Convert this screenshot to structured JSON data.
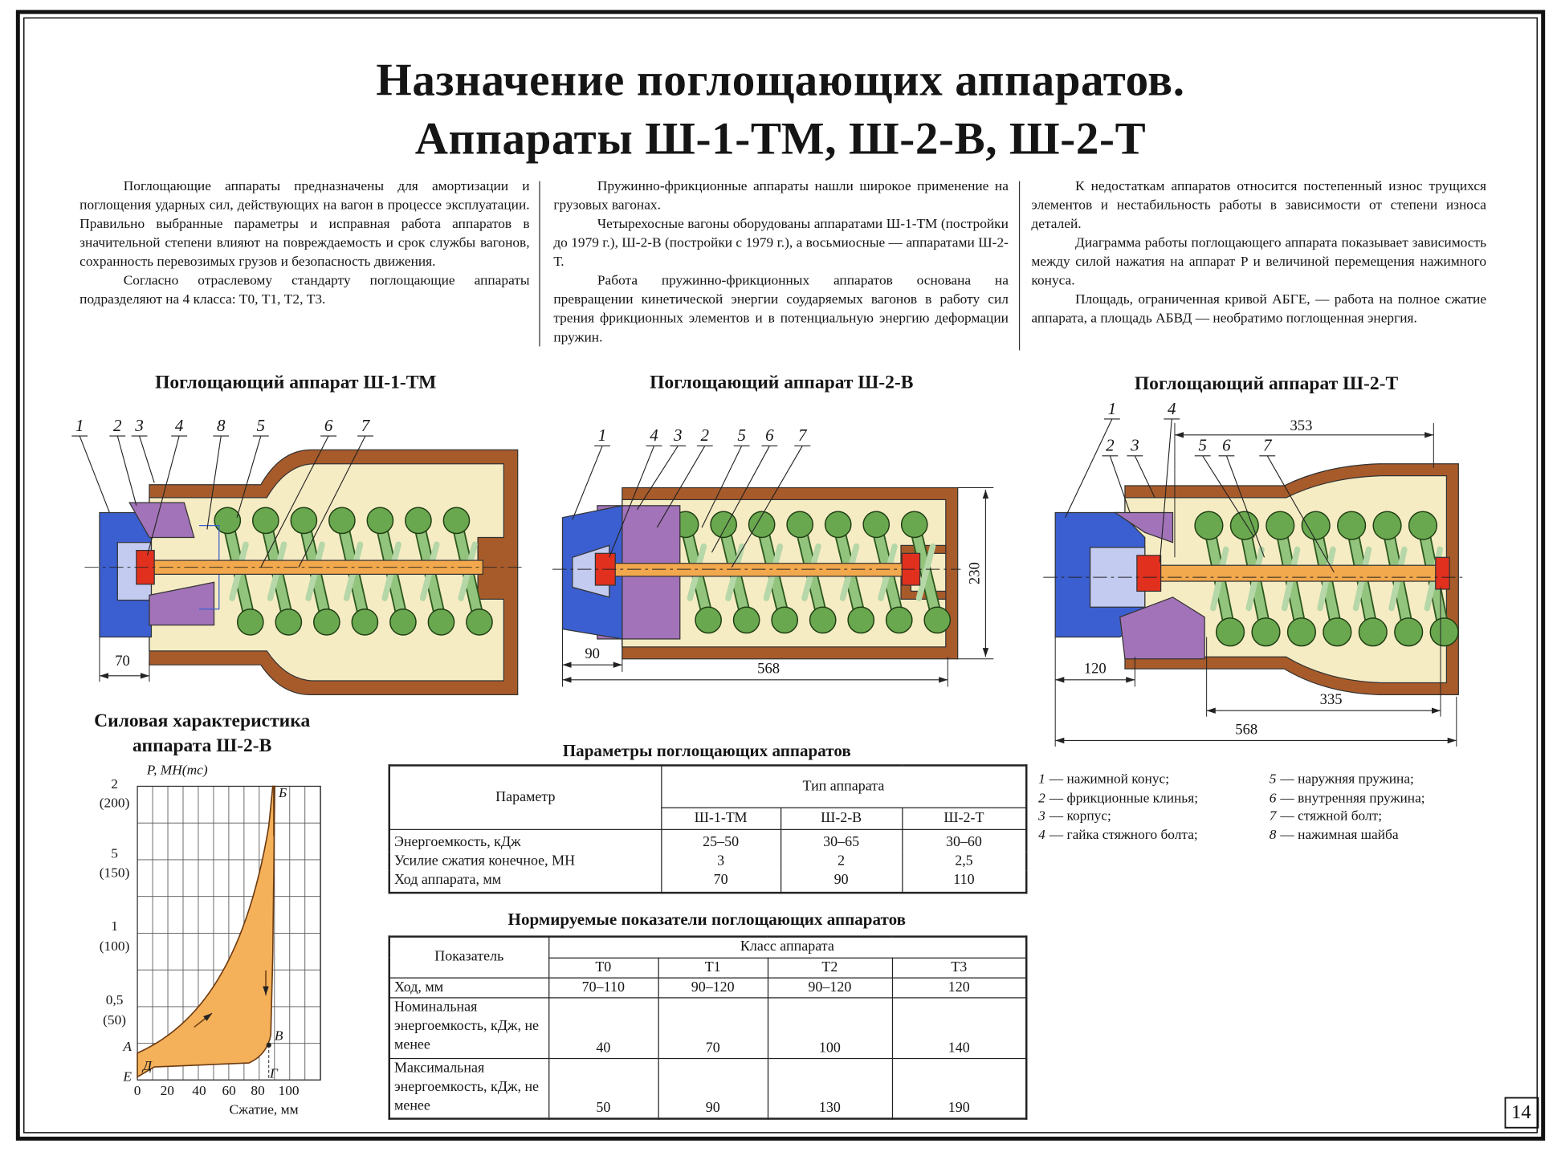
{
  "title": [
    "Назначение поглощающих аппаратов.",
    "Аппараты Ш-1-ТМ, Ш-2-В, Ш-2-Т"
  ],
  "columns": [
    [
      "Поглощающие аппараты предназначены для амортизации и поглощения ударных сил, действующих на вагон в процессе эксплуатации. Правильно выбранные параметры и исправная работа аппаратов в значительной степени влияют на повреждаемость и срок службы вагонов, сохранность перевозимых грузов и безопасность движения.",
      "Согласно отраслевому стандарту поглощающие аппараты подразделяют на 4 класса: Т0, Т1, Т2, Т3."
    ],
    [
      "Пружинно-фрикционные аппараты нашли широкое применение на грузовых вагонах.",
      "Четырехосные вагоны оборудованы аппаратами Ш-1-ТМ (постройки до 1979 г.), Ш-2-В (постройки с 1979 г.), а восьмиосные — аппаратами Ш-2-Т.",
      "Работа пружинно-фрикционных аппаратов основана на превращении кинетической энергии соударяемых вагонов в работу сил трения фрикционных элементов и в потенциальную энергию деформации пружин."
    ],
    [
      "К недостаткам аппаратов относится постепенный износ трущихся элементов и нестабильность работы в зависимости от степени износа деталей.",
      "Диаграмма работы поглощающего аппарата показывает зависимость между силой нажатия на аппарат P и величиной перемещения нажимного конуса.",
      "Площадь, ограниченная кривой АБГЕ, — работа на полное сжатие аппарата, а площадь АБВД — необратимо поглощенная энергия."
    ]
  ],
  "devices": [
    {
      "title": "Поглощающий аппарат Ш-1-ТМ",
      "labels": [
        "1",
        "2",
        "3",
        "4",
        "8",
        "5",
        "6",
        "7"
      ],
      "dimensions": [
        "70"
      ]
    },
    {
      "title": "Поглощающий аппарат Ш-2-В",
      "labels": [
        "1",
        "4",
        "3",
        "2",
        "5",
        "6",
        "7"
      ],
      "dimensions": [
        "90",
        "568",
        "230"
      ]
    },
    {
      "title": "Поглощающий аппарат Ш-2-Т",
      "labels": [
        "1",
        "4",
        "2",
        "3",
        "5",
        "6",
        "7"
      ],
      "dimensions": [
        "353",
        "120",
        "335",
        "568"
      ]
    }
  ],
  "force_chart": {
    "title": [
      "Силовая характеристика",
      "аппарата Ш-2-В"
    ],
    "y_label": "P, МН(тс)",
    "y_ticks": [
      [
        "2",
        "(200)"
      ],
      [
        "5",
        "(150)"
      ],
      [
        "1",
        "(100)"
      ],
      [
        "0,5",
        "(50)"
      ]
    ],
    "x_ticks": [
      "0",
      "20",
      "40",
      "60",
      "80",
      "100"
    ],
    "x_label": "Сжатие, мм",
    "points": [
      "А",
      "Б",
      "В",
      "Г",
      "Д",
      "Е"
    ]
  },
  "params_table": {
    "title": "Параметры поглощающих аппаратов",
    "param_header": "Параметр",
    "type_header": "Тип аппарата",
    "types": [
      "Ш-1-ТМ",
      "Ш-2-В",
      "Ш-2-Т"
    ],
    "rows": [
      [
        "Энергоемкость, кДж",
        "25–50",
        "30–65",
        "30–60"
      ],
      [
        "Усилие сжатия конечное, МН",
        "3",
        "2",
        "2,5"
      ],
      [
        "Ход аппарата, мм",
        "70",
        "90",
        "110"
      ]
    ]
  },
  "norms_table": {
    "title": "Нормируемые показатели поглощающих аппаратов",
    "indicator_header": "Показатель",
    "class_header": "Класс аппарата",
    "classes": [
      "Т0",
      "Т1",
      "Т2",
      "Т3"
    ],
    "rows": [
      [
        "Ход, мм",
        "70–110",
        "90–120",
        "90–120",
        "120"
      ],
      [
        "Номинальная энергоемкость, кДж, не менее",
        "40",
        "70",
        "100",
        "140"
      ],
      [
        "Максимальная энергоемкость, кДж, не менее",
        "50",
        "90",
        "130",
        "190"
      ]
    ]
  },
  "legend": [
    {
      "number": "1",
      "text": "— нажимной конус;"
    },
    {
      "number": "2",
      "text": "— фрикционные клинья;"
    },
    {
      "number": "3",
      "text": "— корпус;"
    },
    {
      "number": "4",
      "text": "— гайка стяжного болта;"
    },
    {
      "number": "5",
      "text": "— наружняя пружина;"
    },
    {
      "number": "6",
      "text": "— внутренняя пружина;"
    },
    {
      "number": "7",
      "text": "— стяжной болт;"
    },
    {
      "number": "8",
      "text": "— нажимная шайба"
    }
  ],
  "page_number": "14"
}
